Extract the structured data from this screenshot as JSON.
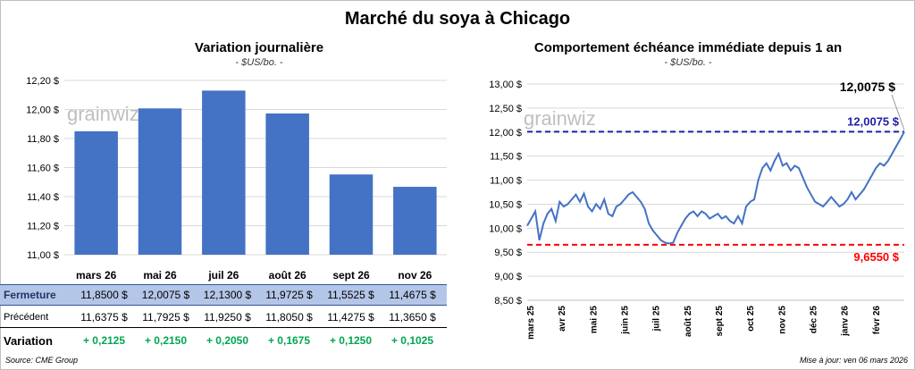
{
  "title": "Marché du soya à Chicago",
  "chart_data": [
    {
      "type": "bar",
      "title": "Variation journalière",
      "unit": "- $US/bo. -",
      "categories": [
        "mars 26",
        "mai 26",
        "juil 26",
        "août 26",
        "sept 26",
        "nov 26"
      ],
      "values": [
        11.85,
        12.0075,
        12.13,
        11.9725,
        11.5525,
        11.4675
      ],
      "ylim": [
        11.0,
        12.2
      ],
      "yticks": [
        "11,00 $",
        "11,20 $",
        "11,40 $",
        "11,60 $",
        "11,80 $",
        "12,00 $",
        "12,20 $"
      ],
      "bar_color": "#4472c4",
      "watermark": "grainwiz",
      "table": {
        "rows": [
          {
            "label": "Fermeture",
            "cells": [
              "11,8500  $",
              "12,0075  $",
              "12,1300  $",
              "11,9725  $",
              "11,5525  $",
              "11,4675  $"
            ]
          },
          {
            "label": "Précédent",
            "cells": [
              "11,6375  $",
              "11,7925  $",
              "11,9250  $",
              "11,8050  $",
              "11,4275  $",
              "11,3650  $"
            ]
          },
          {
            "label": "Variation",
            "cells": [
              "+ 0,2125",
              "+ 0,2150",
              "+ 0,2050",
              "+ 0,1675",
              "+ 0,1250",
              "+ 0,1025"
            ]
          }
        ]
      }
    },
    {
      "type": "line",
      "title": "Comportement  échéance immédiate depuis 1 an",
      "unit": "- $US/bo. -",
      "ylim": [
        8.5,
        13.0
      ],
      "yticks": [
        "8,50 $",
        "9,00 $",
        "9,50 $",
        "10,00 $",
        "10,50 $",
        "11,00 $",
        "11,50 $",
        "12,00 $",
        "12,50 $",
        "13,00 $"
      ],
      "xticks": [
        "mars 25",
        "avr 25",
        "mai 25",
        "juin 25",
        "juil 25",
        "août 25",
        "sept 25",
        "oct 25",
        "nov 25",
        "déc 25",
        "janv 26",
        "févr 26"
      ],
      "line_color": "#4472c4",
      "values": [
        10.05,
        10.2,
        10.35,
        9.75,
        10.1,
        10.3,
        10.4,
        10.15,
        10.55,
        10.45,
        10.5,
        10.6,
        10.7,
        10.55,
        10.72,
        10.45,
        10.35,
        10.5,
        10.4,
        10.6,
        10.3,
        10.25,
        10.45,
        10.5,
        10.6,
        10.7,
        10.75,
        10.65,
        10.55,
        10.4,
        10.1,
        9.95,
        9.85,
        9.75,
        9.7,
        9.68,
        9.7,
        9.9,
        10.05,
        10.2,
        10.3,
        10.35,
        10.25,
        10.35,
        10.3,
        10.2,
        10.25,
        10.3,
        10.2,
        10.25,
        10.15,
        10.1,
        10.25,
        10.1,
        10.45,
        10.55,
        10.6,
        11.0,
        11.25,
        11.35,
        11.2,
        11.4,
        11.55,
        11.3,
        11.35,
        11.2,
        11.3,
        11.25,
        11.05,
        10.85,
        10.7,
        10.55,
        10.5,
        10.45,
        10.55,
        10.65,
        10.55,
        10.45,
        10.5,
        10.6,
        10.75,
        10.6,
        10.7,
        10.8,
        10.95,
        11.1,
        11.25,
        11.35,
        11.3,
        11.4,
        11.55,
        11.7,
        11.85,
        12.0075
      ],
      "high": {
        "value": 12.0075,
        "label": "12,0075 $",
        "color": "#1f1fa8"
      },
      "low": {
        "value": 9.655,
        "label": "9,6550 $",
        "color": "#ff0000"
      },
      "last_label": "12,0075 $",
      "watermark": "grainwiz"
    }
  ],
  "footer": {
    "source": "Source: CME Group",
    "update": "Mise à jour: ven 06 mars 2026"
  }
}
